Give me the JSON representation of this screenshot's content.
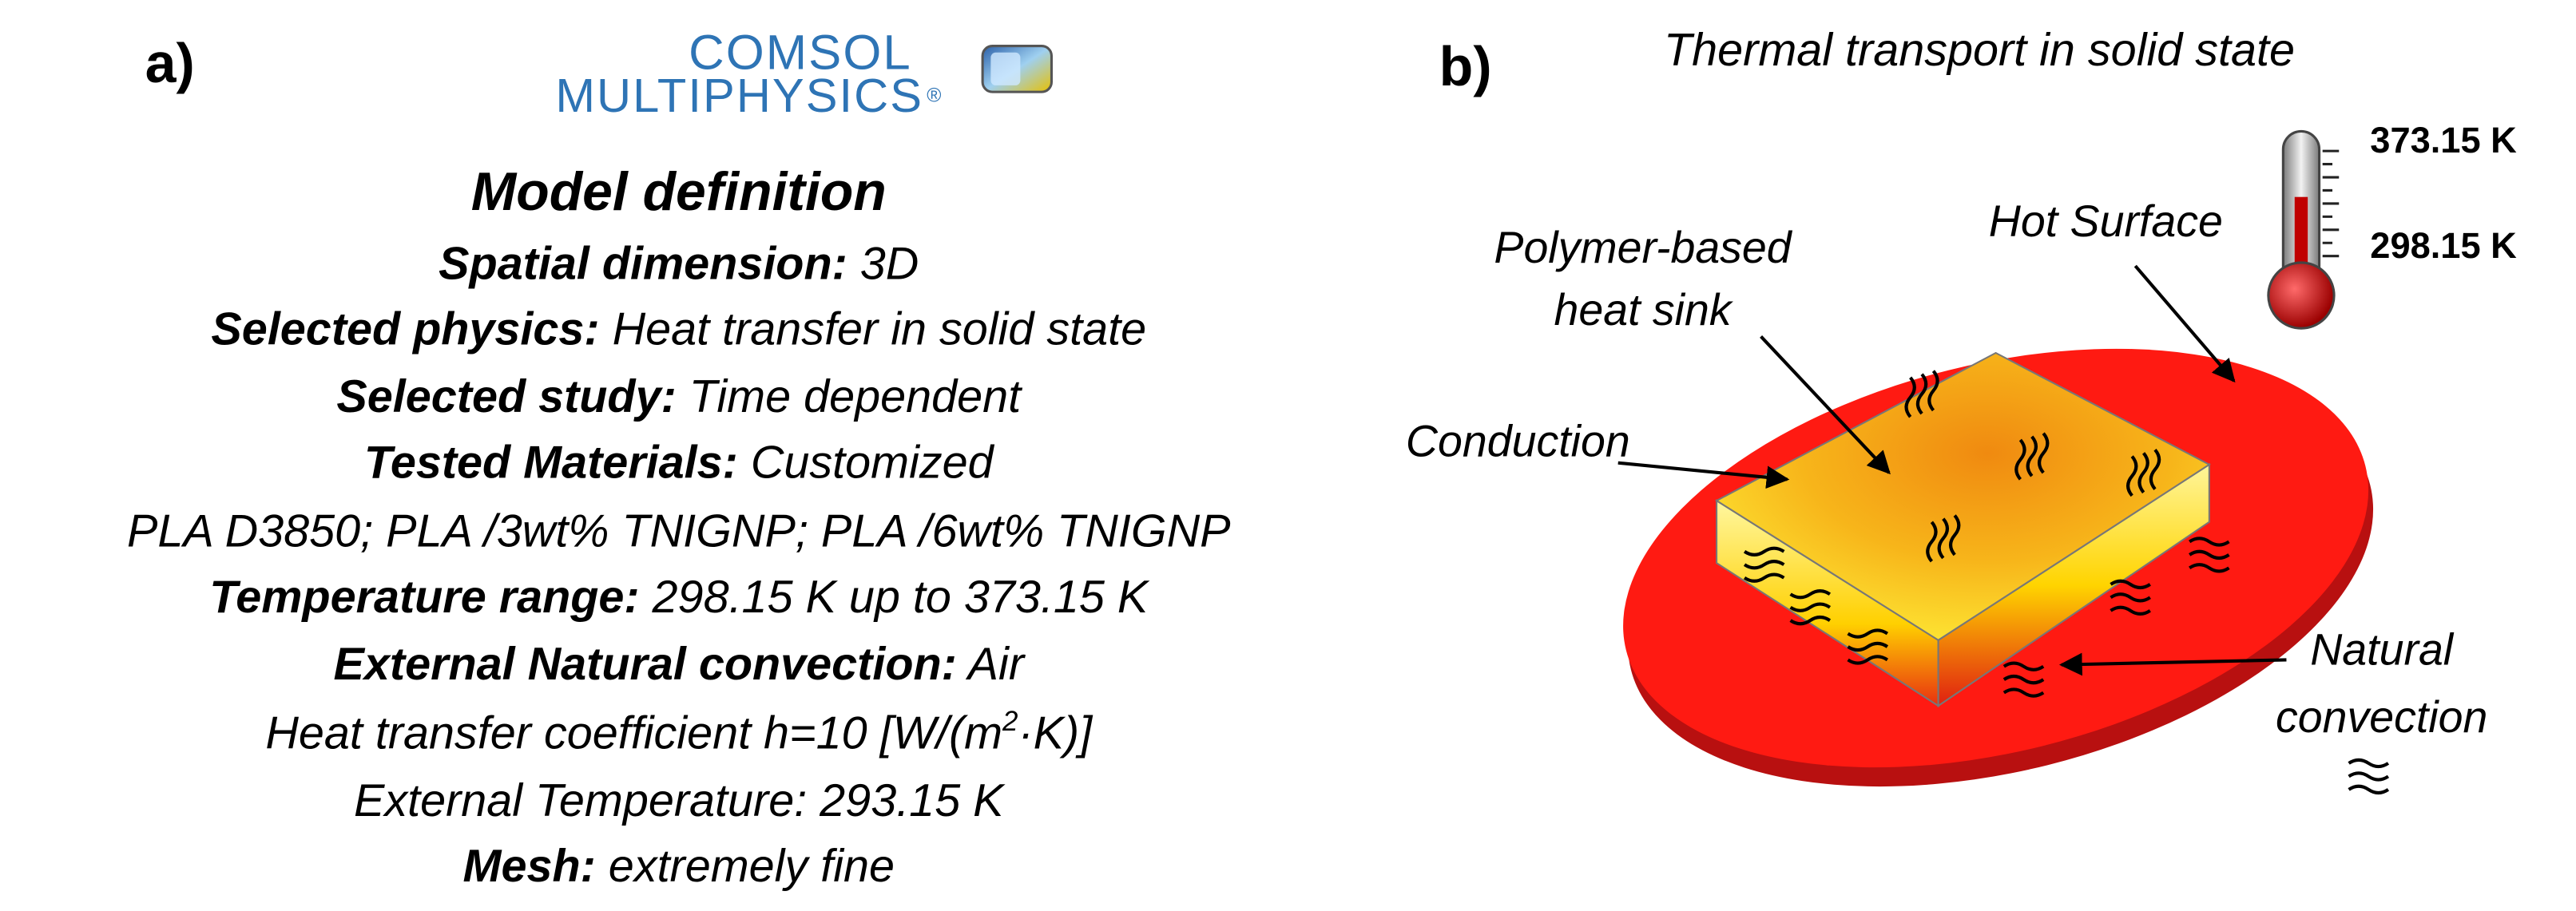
{
  "panel_a": {
    "label": "a)",
    "logo": {
      "line1": "COMSOL",
      "line2": "MULTIPHYSICS",
      "mark": "®"
    },
    "title": "Model definition",
    "lines": [
      {
        "bold": "Spatial dimension:",
        "text": " 3D"
      },
      {
        "bold": "Selected physics:",
        "text": " Heat transfer in solid state"
      },
      {
        "bold": "Selected study:",
        "text": " Time dependent"
      },
      {
        "bold": "Tested Materials:",
        "text": " Customized"
      },
      {
        "text": "PLA  D3850; PLA /3wt% TNIGNP; PLA /6wt% TNIGNP"
      },
      {
        "bold": "Temperature range:",
        "text": " 298.15 K up to 373.15 K"
      },
      {
        "bold": "External Natural convection:",
        "text": " Air"
      },
      {
        "text": "Heat transfer coefficient h=10 [W/(m",
        "sup": "2",
        "after": "·K)]"
      },
      {
        "text": "External Temperature: 293.15 K"
      },
      {
        "bold": "Mesh:",
        "text": " extremely fine"
      }
    ]
  },
  "panel_b": {
    "label": "b)",
    "title": "Thermal transport in solid state",
    "temp_high": "373.15 K",
    "temp_low": "298.15 K",
    "hot_surface": "Hot Surface",
    "heat_sink": [
      "Polymer-based",
      "heat sink"
    ],
    "conduction": "Conduction",
    "natural_convection": [
      "Natural",
      "convection"
    ]
  }
}
